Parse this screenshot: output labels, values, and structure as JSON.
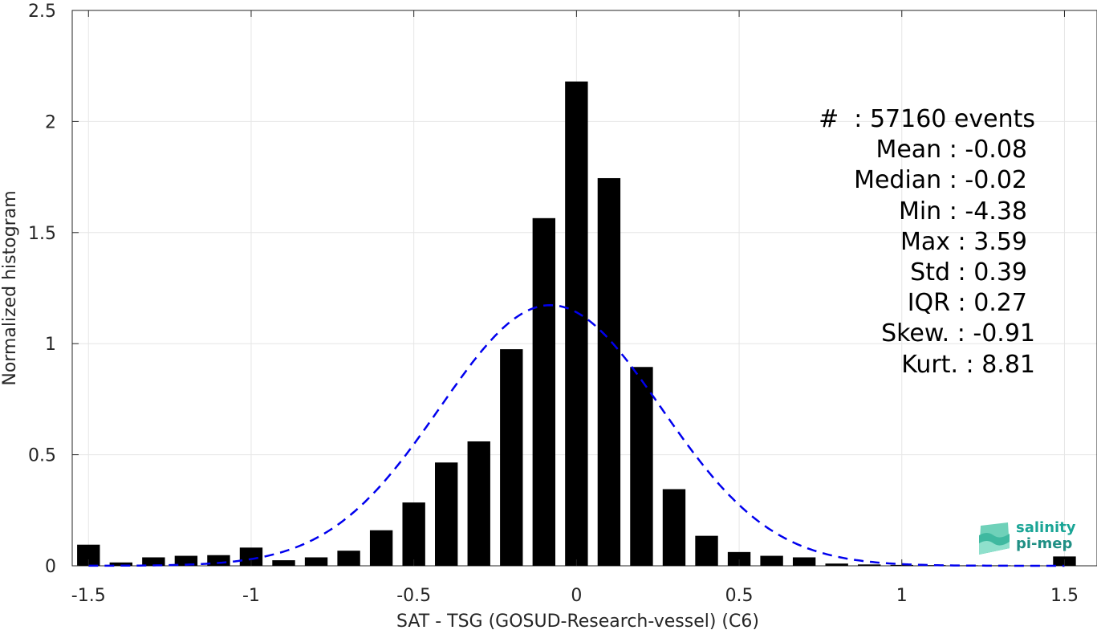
{
  "chart_data": {
    "type": "bar",
    "xlabel": "SAT - TSG (GOSUD-Research-vessel) (C6)",
    "ylabel": "Normalized histogram",
    "xlim": [
      -1.55,
      1.6
    ],
    "ylim": [
      0,
      2.5
    ],
    "xticks": [
      -1.5,
      -1,
      -0.5,
      0,
      0.5,
      1,
      1.5
    ],
    "xtick_labels": [
      "-1.5",
      "-1",
      "-0.5",
      "0",
      "0.5",
      "1",
      "1.5"
    ],
    "yticks": [
      0,
      0.5,
      1,
      1.5,
      2,
      2.5
    ],
    "ytick_labels": [
      "0",
      "0.5",
      "1",
      "1.5",
      "2",
      "2.5"
    ],
    "grid": true,
    "bar_color": "#000000",
    "bins": [
      {
        "x": -1.5,
        "y": 0.095
      },
      {
        "x": -1.4,
        "y": 0.015
      },
      {
        "x": -1.3,
        "y": 0.038
      },
      {
        "x": -1.2,
        "y": 0.045
      },
      {
        "x": -1.1,
        "y": 0.048
      },
      {
        "x": -1.0,
        "y": 0.082
      },
      {
        "x": -0.9,
        "y": 0.025
      },
      {
        "x": -0.8,
        "y": 0.038
      },
      {
        "x": -0.7,
        "y": 0.068
      },
      {
        "x": -0.6,
        "y": 0.16
      },
      {
        "x": -0.5,
        "y": 0.285
      },
      {
        "x": -0.4,
        "y": 0.465
      },
      {
        "x": -0.3,
        "y": 0.56
      },
      {
        "x": -0.2,
        "y": 0.975
      },
      {
        "x": -0.1,
        "y": 1.565
      },
      {
        "x": 0.0,
        "y": 2.18
      },
      {
        "x": 0.1,
        "y": 1.745
      },
      {
        "x": 0.2,
        "y": 0.895
      },
      {
        "x": 0.3,
        "y": 0.345
      },
      {
        "x": 0.4,
        "y": 0.135
      },
      {
        "x": 0.5,
        "y": 0.062
      },
      {
        "x": 0.6,
        "y": 0.045
      },
      {
        "x": 0.7,
        "y": 0.038
      },
      {
        "x": 0.8,
        "y": 0.01
      },
      {
        "x": 0.9,
        "y": 0.006
      },
      {
        "x": 1.0,
        "y": 0.004
      },
      {
        "x": 1.1,
        "y": 0.003
      },
      {
        "x": 1.2,
        "y": 0.002
      },
      {
        "x": 1.3,
        "y": 0.002
      },
      {
        "x": 1.4,
        "y": 0.001
      },
      {
        "x": 1.5,
        "y": 0.042
      }
    ],
    "fit_curve": {
      "style": "dashed",
      "color": "#0000ee",
      "mean": -0.08,
      "std": 0.34,
      "x_range": [
        -1.5,
        1.5
      ]
    }
  },
  "stats": {
    "events": "#  : 57160 events",
    "mean": "Mean : -0.08",
    "median": "Median : -0.02",
    "min": "Min : -4.38",
    "max": "Max : 3.59",
    "std": "Std : 0.39",
    "iqr": "IQR : 0.27",
    "skew": "Skew. : -0.91",
    "kurt": "Kurt. : 8.81"
  },
  "logo": {
    "line1": "salinity",
    "line2": "pi-mep"
  }
}
